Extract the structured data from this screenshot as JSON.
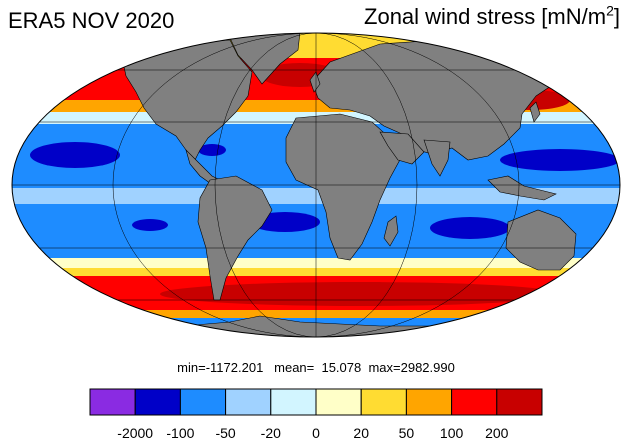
{
  "header": {
    "left_title": "ERA5 NOV 2020",
    "right_title_main": "Zonal wind stress [mN/m",
    "right_title_sup": "2",
    "right_title_end": "]"
  },
  "stats": {
    "text": "min=-1172.201   mean=  15.078  max=2982.990"
  },
  "colorbar": {
    "colors": [
      "#8a2be2",
      "#0000c8",
      "#1e8cff",
      "#a0d2ff",
      "#d2f5ff",
      "#ffffc8",
      "#ffdc32",
      "#ffa500",
      "#ff0000",
      "#c80000"
    ],
    "labels": [
      "-2000",
      "-100",
      "-50",
      "-20",
      "0",
      "20",
      "50",
      "100",
      "200"
    ]
  },
  "map": {
    "projection": "Mollweide",
    "land_color": "#808080",
    "graticule": "on"
  }
}
